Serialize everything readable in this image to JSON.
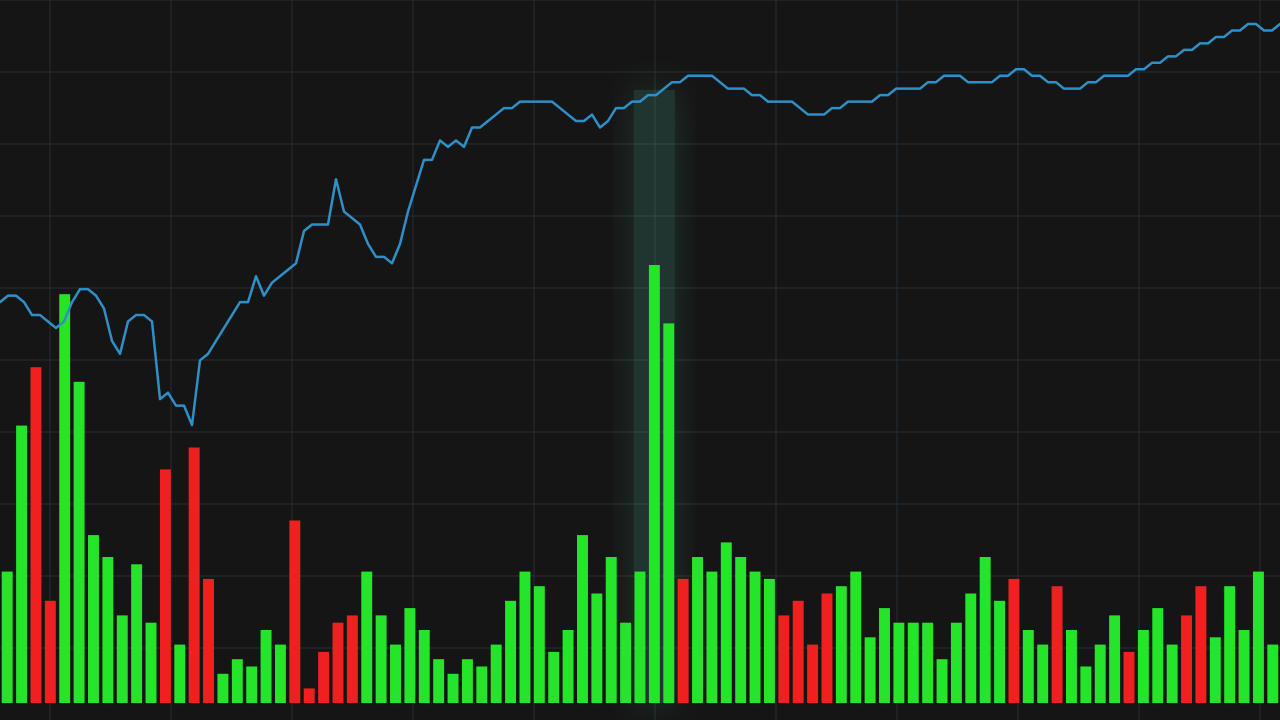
{
  "chart_data": {
    "type": "line",
    "title": "",
    "xlabel": "",
    "ylabel": "",
    "grid": true,
    "ylim": [
      0,
      100
    ],
    "colors": {
      "background": "#151515",
      "grid": "#252a2d",
      "price_line": "#2f8fc7",
      "up_bar": "#25e52b",
      "down_bar": "#ef2020",
      "highlight_glow": "#51c7a4"
    },
    "price_series": {
      "name": "",
      "x": [
        0,
        1,
        2,
        3,
        4,
        5,
        6,
        7,
        8,
        9,
        10,
        11,
        12,
        13,
        14,
        15,
        16,
        17,
        18,
        19,
        20,
        21,
        22,
        23,
        24,
        25,
        26,
        27,
        28,
        29,
        30,
        31,
        32,
        33,
        34,
        35,
        36,
        37,
        38,
        39,
        40,
        41,
        42,
        43,
        44,
        45,
        46,
        47,
        48,
        49,
        50,
        51,
        52,
        53,
        54,
        55,
        56,
        57,
        58,
        59,
        60,
        61,
        62,
        63,
        64,
        65,
        66,
        67,
        68,
        69,
        70,
        71,
        72,
        73,
        74,
        75,
        76,
        77,
        78,
        79,
        80,
        81,
        82,
        83,
        84,
        85,
        86,
        87,
        88,
        89,
        90,
        91,
        92,
        93,
        94,
        95,
        96,
        97,
        98,
        99,
        100,
        101,
        102,
        103,
        104,
        105,
        106,
        107,
        108,
        109,
        110,
        111,
        112,
        113,
        114,
        115,
        116,
        117,
        118,
        119,
        120,
        121,
        122,
        123,
        124,
        125,
        126,
        127,
        128,
        129,
        130,
        131,
        132,
        133,
        134,
        135,
        136,
        137,
        138,
        139,
        140,
        141,
        142,
        143,
        144,
        145,
        146,
        147,
        148,
        149,
        150,
        151,
        152,
        153,
        154,
        155,
        156,
        157,
        158,
        159,
        160
      ],
      "y": [
        57,
        58,
        58,
        57,
        55,
        55,
        54,
        53,
        54,
        57,
        59,
        59,
        58,
        56,
        51,
        49,
        54,
        55,
        55,
        54,
        42,
        43,
        41,
        41,
        38,
        48,
        49,
        51,
        53,
        55,
        57,
        57,
        61,
        58,
        60,
        61,
        62,
        63,
        68,
        69,
        69,
        69,
        76,
        71,
        70,
        69,
        66,
        64,
        64,
        63,
        66,
        71,
        75,
        79,
        79,
        82,
        81,
        82,
        81,
        84,
        84,
        85,
        86,
        87,
        87,
        88,
        88,
        88,
        88,
        88,
        87,
        86,
        85,
        85,
        86,
        84,
        85,
        87,
        87,
        88,
        88,
        89,
        89,
        90,
        91,
        91,
        92,
        92,
        92,
        92,
        91,
        90,
        90,
        90,
        89,
        89,
        88,
        88,
        88,
        88,
        87,
        86,
        86,
        86,
        87,
        87,
        88,
        88,
        88,
        88,
        89,
        89,
        90,
        90,
        90,
        90,
        91,
        91,
        92,
        92,
        92,
        91,
        91,
        91,
        91,
        92,
        92,
        93,
        93,
        92,
        92,
        91,
        91,
        90,
        90,
        90,
        91,
        91,
        92,
        92,
        92,
        92,
        93,
        93,
        94,
        94,
        95,
        95,
        96,
        96,
        97,
        97,
        98,
        98,
        99,
        99,
        100,
        100,
        99,
        99,
        100
      ]
    },
    "volume_series": {
      "name": "",
      "values": [
        18,
        38,
        46,
        14,
        56,
        44,
        23,
        20,
        12,
        19,
        11,
        32,
        8,
        35,
        17,
        4,
        6,
        5,
        10,
        8,
        25,
        2,
        7,
        11,
        12,
        18,
        12,
        8,
        13,
        10,
        6,
        4,
        6,
        5,
        8,
        14,
        18,
        16,
        7,
        10,
        23,
        15,
        20,
        11,
        18,
        60,
        52,
        17,
        20,
        18,
        22,
        20,
        18,
        17,
        12,
        14,
        8,
        15,
        16,
        18,
        9,
        13,
        11,
        11,
        11,
        6,
        11,
        15,
        20,
        14,
        17,
        10,
        8,
        16,
        10,
        5,
        8,
        12,
        7,
        10,
        13,
        8,
        12,
        16,
        9,
        16,
        10,
        18,
        8
      ],
      "direction": [
        "up",
        "up",
        "down",
        "down",
        "up",
        "up",
        "up",
        "up",
        "up",
        "up",
        "up",
        "down",
        "up",
        "down",
        "down",
        "up",
        "up",
        "up",
        "up",
        "up",
        "down",
        "down",
        "down",
        "down",
        "down",
        "up",
        "up",
        "up",
        "up",
        "up",
        "up",
        "up",
        "up",
        "up",
        "up",
        "up",
        "up",
        "up",
        "up",
        "up",
        "up",
        "up",
        "up",
        "up",
        "up",
        "up",
        "up",
        "down",
        "up",
        "up",
        "up",
        "up",
        "up",
        "up",
        "down",
        "down",
        "down",
        "down",
        "up",
        "up",
        "up",
        "up",
        "up",
        "up",
        "up",
        "up",
        "up",
        "up",
        "up",
        "up",
        "down",
        "up",
        "up",
        "down",
        "up",
        "up",
        "up",
        "up",
        "down",
        "up",
        "up",
        "up",
        "down",
        "down",
        "up",
        "up",
        "up",
        "up",
        "up"
      ]
    },
    "highlight_index": 45,
    "legend": null,
    "axes_visible": false
  }
}
